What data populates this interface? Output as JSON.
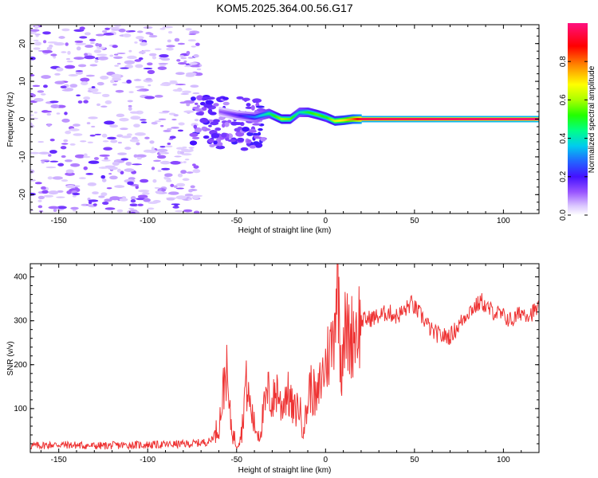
{
  "title": "KOM5.2025.364.00.56.G17",
  "colors": {
    "snr_line": "#ee3333",
    "plot_frame": "#000000"
  },
  "chart_data": [
    {
      "type": "heatmap",
      "name": "spectrogram",
      "xlabel": "Height of straight line (km)",
      "ylabel": "Frequency (Hz)",
      "xlim": [
        -166,
        120
      ],
      "ylim": [
        -25,
        25
      ],
      "xticks": [
        -150,
        -100,
        -50,
        0,
        50,
        100
      ],
      "yticks": [
        -20,
        -10,
        0,
        10,
        20
      ],
      "colorbar": {
        "label": "Normalized spectral amplitude",
        "range": [
          0,
          1
        ],
        "ticks": [
          "0.0",
          "0.2",
          "0.4",
          "0.6",
          "0.8"
        ],
        "tick_values": [
          0,
          0.2,
          0.4,
          0.6,
          0.8
        ]
      },
      "ridge": {
        "description_points_x": [
          -60,
          -50,
          -40,
          -32,
          -25,
          -20,
          -15,
          -10,
          -5,
          0,
          5,
          10,
          15,
          20,
          120
        ],
        "description_points_freq": [
          2,
          1,
          0.5,
          1.5,
          0,
          0,
          1.8,
          1.8,
          1.2,
          0.5,
          -0.5,
          -0.3,
          0,
          0,
          0
        ],
        "description_points_amp": [
          0.12,
          0.18,
          0.3,
          0.45,
          0.6,
          0.55,
          0.4,
          0.5,
          0.55,
          0.5,
          0.65,
          0.7,
          0.8,
          0.95,
          0.98
        ]
      }
    },
    {
      "type": "line",
      "name": "snr",
      "xlabel": "Height of straight line (km)",
      "ylabel": "SNR (v/v)",
      "xlim": [
        -166,
        120
      ],
      "ylim": [
        0,
        430
      ],
      "xticks": [
        -150,
        -100,
        -50,
        0,
        50,
        100
      ],
      "yticks": [
        100,
        200,
        300,
        400
      ],
      "series": [
        {
          "name": "SNR",
          "x": [
            -166,
            -150,
            -130,
            -110,
            -90,
            -75,
            -65,
            -60,
            -58,
            -56,
            -54,
            -52,
            -50,
            -47,
            -45,
            -43,
            -40,
            -37,
            -35,
            -32,
            -30,
            -27,
            -25,
            -22,
            -20,
            -18,
            -15,
            -13,
            -11,
            -9,
            -7,
            -5,
            -3,
            0,
            2,
            4,
            6,
            7,
            8,
            9,
            10,
            12,
            14,
            16,
            20,
            25,
            30,
            35,
            40,
            45,
            48,
            50,
            55,
            60,
            65,
            70,
            75,
            80,
            85,
            88,
            90,
            95,
            100,
            105,
            110,
            115,
            120
          ],
          "y": [
            15,
            18,
            15,
            17,
            18,
            20,
            25,
            60,
            120,
            200,
            90,
            40,
            20,
            50,
            160,
            120,
            60,
            40,
            90,
            140,
            110,
            150,
            100,
            140,
            120,
            90,
            110,
            60,
            80,
            150,
            140,
            110,
            160,
            200,
            230,
            250,
            380,
            420,
            260,
            200,
            280,
            270,
            260,
            280,
            300,
            305,
            310,
            320,
            310,
            325,
            340,
            330,
            305,
            275,
            265,
            265,
            290,
            320,
            335,
            345,
            330,
            320,
            310,
            300,
            320,
            315,
            330
          ]
        }
      ]
    }
  ]
}
